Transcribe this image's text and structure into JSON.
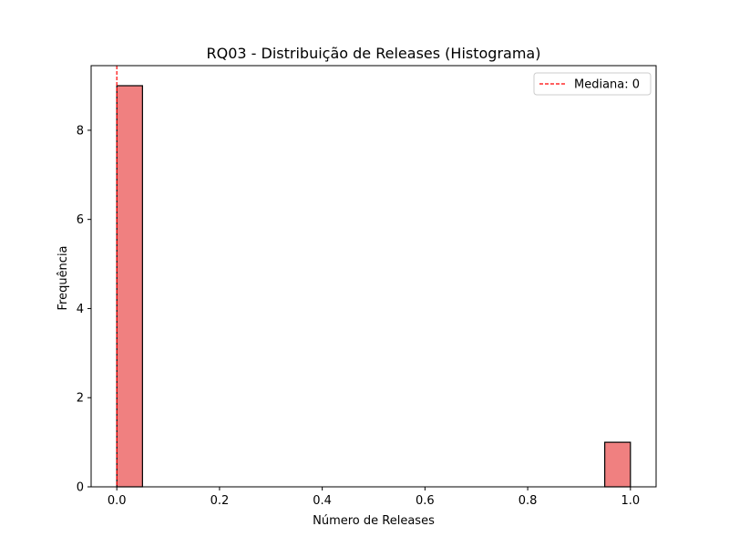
{
  "chart_data": {
    "type": "bar",
    "title": "RQ03 - Distribuição de Releases (Histograma)",
    "xlabel": "Número de Releases",
    "ylabel": "Frequência",
    "xlim": [
      -0.05,
      1.05
    ],
    "ylim": [
      0,
      9.45
    ],
    "xticks": [
      0.0,
      0.2,
      0.4,
      0.6,
      0.8,
      1.0
    ],
    "xtick_labels": [
      "0.0",
      "0.2",
      "0.4",
      "0.6",
      "0.8",
      "1.0"
    ],
    "yticks": [
      0,
      2,
      4,
      6,
      8
    ],
    "ytick_labels": [
      "0",
      "2",
      "4",
      "6",
      "8"
    ],
    "bins": [
      {
        "start": 0.0,
        "end": 0.05,
        "count": 9
      },
      {
        "start": 0.95,
        "end": 1.0,
        "count": 1
      }
    ],
    "bar_color": "#f08080",
    "median": {
      "value": 0,
      "label": "Mediana: 0",
      "color": "#ff0000",
      "style": "dashed"
    },
    "legend_position": "upper right",
    "grid": false
  }
}
